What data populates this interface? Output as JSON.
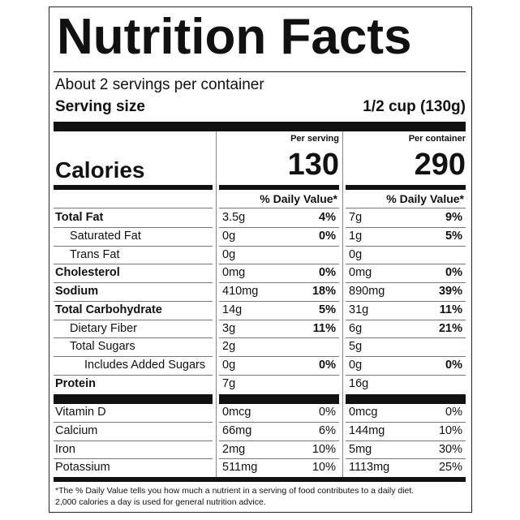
{
  "title": "Nutrition Facts",
  "servings": "About 2 servings per container",
  "serving_size": {
    "label": "Serving size",
    "value": "1/2 cup (130g)"
  },
  "calories": {
    "label": "Calories",
    "per_serving_heading": "Per serving",
    "per_serving": "130",
    "per_container_heading": "Per container",
    "per_container": "290"
  },
  "dv_heading": [
    "% Daily Value*",
    "% Daily Value*"
  ],
  "nutrients": [
    {
      "name": "Total Fat",
      "bold": true,
      "indent": 0,
      "serving": "3.5g",
      "serving_dv": "4%",
      "container": "7g",
      "container_dv": "9%"
    },
    {
      "name": "Saturated Fat",
      "bold": false,
      "indent": 1,
      "serving": "0g",
      "serving_dv": "0%",
      "container": "1g",
      "container_dv": "5%"
    },
    {
      "name": "Trans Fat",
      "bold": false,
      "indent": 1,
      "serving": "0g",
      "container": "0g"
    },
    {
      "name": "Cholesterol",
      "bold": true,
      "indent": 0,
      "serving": "0mg",
      "serving_dv": "0%",
      "container": "0mg",
      "container_dv": "0%"
    },
    {
      "name": "Sodium",
      "bold": true,
      "indent": 0,
      "serving": "410mg",
      "serving_dv": "18%",
      "container": "890mg",
      "container_dv": "39%"
    },
    {
      "name": "Total Carbohydrate",
      "bold": true,
      "indent": 0,
      "serving": "14g",
      "serving_dv": "5%",
      "container": "31g",
      "container_dv": "11%"
    },
    {
      "name": "Dietary Fiber",
      "bold": false,
      "indent": 1,
      "serving": "3g",
      "serving_dv": "11%",
      "container": "6g",
      "container_dv": "21%"
    },
    {
      "name": "Total Sugars",
      "bold": false,
      "indent": 1,
      "serving": "2g",
      "container": "5g"
    },
    {
      "name": "Includes Added Sugars",
      "bold": false,
      "indent": 2,
      "serving": "0g",
      "serving_dv": "0%",
      "container": "0g",
      "container_dv": "0%"
    },
    {
      "name": "Protein",
      "bold": true,
      "indent": 0,
      "serving": "7g",
      "container": "16g"
    }
  ],
  "vitamins": [
    {
      "name": "Vitamin D",
      "serving": "0mcg",
      "serving_dv": "0%",
      "container": "0mcg",
      "container_dv": "0%"
    },
    {
      "name": "Calcium",
      "serving": "66mg",
      "serving_dv": "6%",
      "container": "144mg",
      "container_dv": "10%"
    },
    {
      "name": "Iron",
      "serving": "2mg",
      "serving_dv": "10%",
      "container": "5mg",
      "container_dv": "30%"
    },
    {
      "name": "Potassium",
      "serving": "511mg",
      "serving_dv": "10%",
      "container": "1113mg",
      "container_dv": "25%"
    }
  ],
  "footnote": [
    "*The % Daily Value tells you how much a nutrient in a serving of food contributes to a daily diet.",
    "2,000 calories a day is used for general nutrition advice."
  ]
}
